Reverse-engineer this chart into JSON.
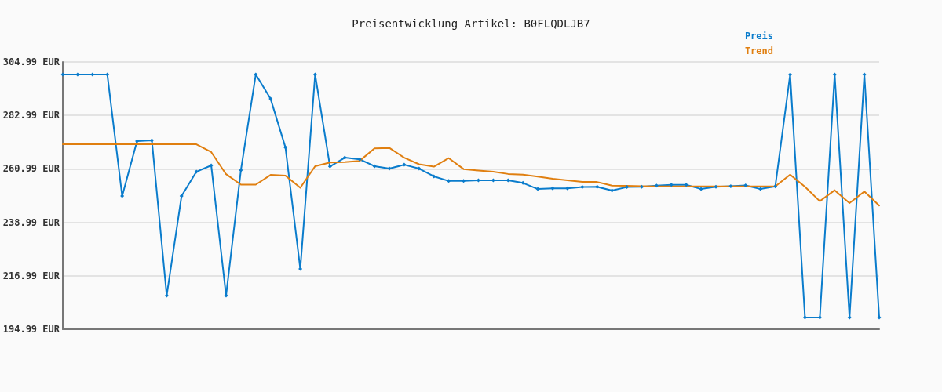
{
  "chart_data": {
    "type": "line",
    "title": "Preisentwicklung Artikel: B0FLQDLJB7",
    "categories": [
      null,
      null,
      null,
      null,
      null,
      null,
      null,
      null,
      null,
      null,
      null,
      null,
      null,
      null,
      null,
      null,
      null,
      null,
      null,
      null,
      null,
      null,
      null,
      null,
      null,
      null,
      null,
      null,
      null,
      null,
      null,
      null,
      null,
      null,
      null,
      null,
      null,
      null,
      null,
      null,
      null,
      null,
      null,
      null,
      null,
      null,
      null,
      null,
      null,
      null,
      null,
      null,
      null,
      null,
      null,
      null
    ],
    "series": [
      {
        "name": "Preis",
        "color": "#0a7ccc",
        "marker": "diamond",
        "values": [
          299.8,
          299.8,
          299.8,
          299.8,
          249.8,
          272.4,
          272.7,
          208.9,
          249.8,
          259.8,
          262.4,
          208.9,
          260.5,
          299.8,
          289.8,
          269.8,
          219.8,
          299.8,
          262.0,
          265.6,
          264.9,
          262.1,
          261.1,
          262.7,
          261.1,
          257.9,
          256.0,
          256.0,
          256.3,
          256.3,
          256.3,
          255.2,
          252.7,
          253.0,
          253.0,
          253.5,
          253.6,
          252.1,
          253.5,
          253.6,
          254.1,
          254.4,
          254.4,
          252.7,
          253.6,
          253.9,
          254.2,
          252.7,
          253.8,
          299.8,
          199.8,
          199.8,
          299.8,
          199.8,
          299.8,
          199.8
        ]
      },
      {
        "name": "Trend",
        "color": "#e07f10",
        "marker": "none",
        "values": [
          271.1,
          271.1,
          271.1,
          271.1,
          271.1,
          271.1,
          271.1,
          271.1,
          271.1,
          271.1,
          267.9,
          258.8,
          254.5,
          254.5,
          258.5,
          258.2,
          253.2,
          262.1,
          263.6,
          263.8,
          264.3,
          269.4,
          269.6,
          265.6,
          262.9,
          261.9,
          265.4,
          260.9,
          260.3,
          259.8,
          258.9,
          258.6,
          257.8,
          256.9,
          256.3,
          255.6,
          255.6,
          254.1,
          254.0,
          253.9,
          253.8,
          253.8,
          253.8,
          253.8,
          253.8,
          253.8,
          253.8,
          253.8,
          253.8,
          258.6,
          253.6,
          247.7,
          252.2,
          246.9,
          251.7,
          245.9
        ]
      }
    ],
    "ylim": [
      194.99,
      304.99
    ],
    "yticks": [
      {
        "value": 194.99,
        "label": "194.99 EUR"
      },
      {
        "value": 216.99,
        "label": "216.99 EUR"
      },
      {
        "value": 238.99,
        "label": "238.99 EUR"
      },
      {
        "value": 260.99,
        "label": "260.99 EUR"
      },
      {
        "value": 282.99,
        "label": "282.99 EUR"
      },
      {
        "value": 304.99,
        "label": "304.99 EUR"
      }
    ],
    "grid": "y",
    "legend": "top right",
    "line_style": "solid"
  }
}
